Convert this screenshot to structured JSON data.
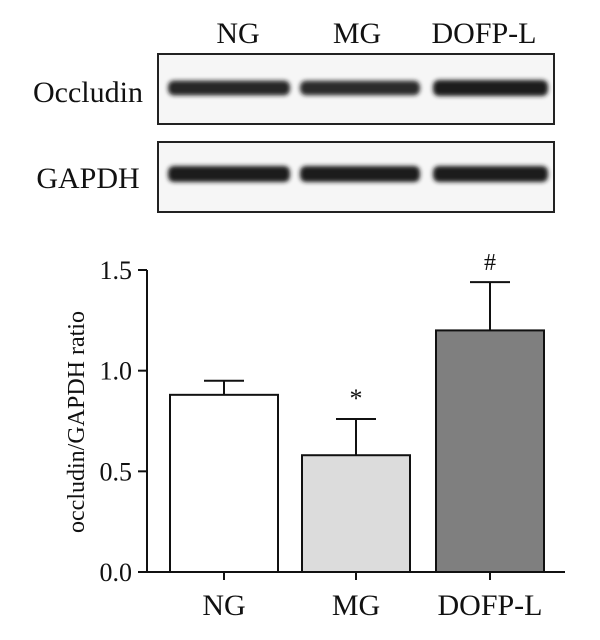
{
  "blot": {
    "lanes": [
      "NG",
      "MG",
      "DOFP-L"
    ],
    "rows": [
      {
        "label": "Occludin",
        "band_intensity": [
          0.85,
          0.8,
          1.0
        ]
      },
      {
        "label": "GAPDH",
        "band_intensity": [
          1.0,
          1.0,
          1.0
        ]
      }
    ]
  },
  "chart_data": {
    "type": "bar",
    "categories": [
      "NG",
      "MG",
      "DOFP-L"
    ],
    "values": [
      0.88,
      0.58,
      1.2
    ],
    "errors": [
      0.07,
      0.18,
      0.24
    ],
    "significance": [
      "",
      "*",
      "#"
    ],
    "bar_colors": [
      "#ffffff",
      "#dcdcdc",
      "#7f7f7f"
    ],
    "ylabel": "occludin/GAPDH ratio",
    "xlabel": "",
    "ylim": [
      0,
      1.5
    ],
    "yticks": [
      0.0,
      0.5,
      1.0,
      1.5
    ],
    "ytick_labels": [
      "0.0",
      "0.5",
      "1.0",
      "1.5"
    ],
    "grid": false
  }
}
